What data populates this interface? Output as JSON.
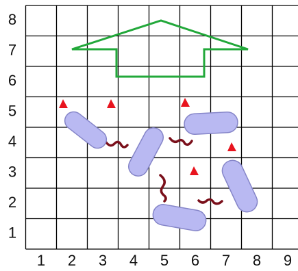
{
  "row_labels": [
    "8",
    "7",
    "6",
    "5",
    "4",
    "3",
    "2",
    "1"
  ],
  "column_labels": [
    "1",
    "2",
    "3",
    "4",
    "5",
    "6",
    "7",
    "8",
    "9"
  ]
}
